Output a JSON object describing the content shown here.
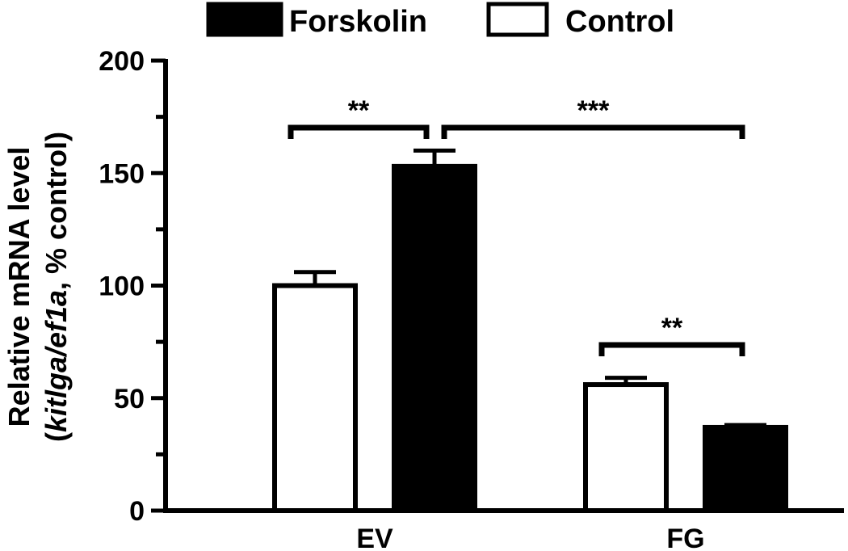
{
  "chart_data": {
    "type": "bar",
    "categories": [
      "EV",
      "FG"
    ],
    "series": [
      {
        "name": "Control",
        "values": [
          100,
          56
        ],
        "errors": [
          6,
          3
        ],
        "fill": "#ffffff"
      },
      {
        "name": "Forskolin",
        "values": [
          153,
          37
        ],
        "errors": [
          7,
          1
        ],
        "fill": "#000000"
      }
    ],
    "legend": [
      {
        "label": "Forskolin",
        "fill": "#000000"
      },
      {
        "label": "Control",
        "fill": "#ffffff"
      }
    ],
    "legend_position": "top",
    "ylabel": {
      "line1": "Relative mRNA level",
      "line2_open": "(",
      "line2_italic": "kitlga/ef1a",
      "line2_rest": ", % control)"
    },
    "ylim": [
      0,
      200
    ],
    "yticks": [
      "0",
      "50",
      "100",
      "150",
      "200"
    ],
    "grid": false,
    "significance": [
      {
        "label": "**",
        "from": {
          "category": "EV",
          "series": "Control"
        },
        "to": {
          "category": "EV",
          "series": "Forskolin"
        }
      },
      {
        "label": "***",
        "from": {
          "category": "EV",
          "series": "Forskolin"
        },
        "to": {
          "category": "FG",
          "series": "Forskolin"
        }
      },
      {
        "label": "**",
        "from": {
          "category": "FG",
          "series": "Control"
        },
        "to": {
          "category": "FG",
          "series": "Forskolin"
        }
      }
    ],
    "colors": {
      "axis": "#000000",
      "text": "#000000"
    }
  }
}
